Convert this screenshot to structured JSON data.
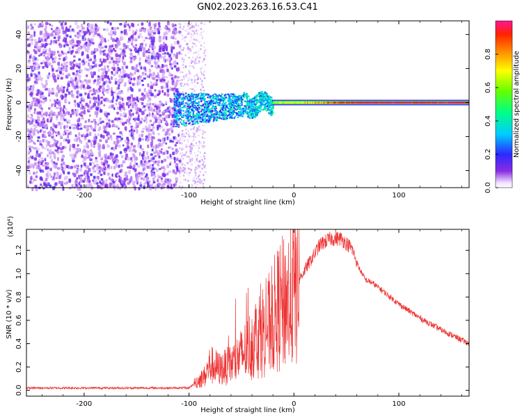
{
  "title": "GN02.2023.263.16.53.C41",
  "chart_data": [
    {
      "type": "heatmap",
      "name": "spectrogram",
      "xlabel": "Height of straight line (km)",
      "ylabel": "Frequency (Hz)",
      "xlim": [
        -255,
        167
      ],
      "ylim": [
        -50,
        48
      ],
      "xticks": [
        -200,
        -100,
        0,
        100
      ],
      "yticks": [
        -40,
        -20,
        0,
        20,
        40
      ],
      "colorbar": {
        "label": "Normalized spectral amplitude",
        "range": [
          0.0,
          1.0
        ],
        "ticks": [
          0.0,
          0.2,
          0.4,
          0.6,
          0.8
        ]
      },
      "features": {
        "noise_region_x": [
          -255,
          -110
        ],
        "signal_band_start_x": -115,
        "signal_band_center_hz": 0,
        "wide_band_x": [
          -115,
          -20
        ],
        "wide_band_halfwidth_hz": 8,
        "strong_signal_x": [
          -20,
          167
        ]
      }
    },
    {
      "type": "line",
      "name": "snr",
      "xlabel": "Height of straight line (km)",
      "ylabel": "SNR (10 * v/v)",
      "y_multiplier": "(x10⁴)",
      "xlim": [
        -255,
        167
      ],
      "ylim": [
        -0.05,
        1.38
      ],
      "xticks": [
        -200,
        -100,
        0,
        100
      ],
      "yticks": [
        0.0,
        0.2,
        0.4,
        0.6,
        0.8,
        1.0,
        1.2
      ],
      "line_color": "#ee3333",
      "envelope_points": [
        [
          -255,
          0.02
        ],
        [
          -100,
          0.02
        ],
        [
          -95,
          0.06
        ],
        [
          -85,
          0.12
        ],
        [
          -80,
          0.22
        ],
        [
          -70,
          0.18
        ],
        [
          -60,
          0.22
        ],
        [
          -50,
          0.3
        ],
        [
          -40,
          0.4
        ],
        [
          -35,
          0.48
        ],
        [
          -25,
          0.55
        ],
        [
          -15,
          0.7
        ],
        [
          -5,
          0.8
        ],
        [
          5,
          0.95
        ],
        [
          15,
          1.1
        ],
        [
          25,
          1.25
        ],
        [
          35,
          1.3
        ],
        [
          45,
          1.3
        ],
        [
          55,
          1.22
        ],
        [
          62,
          1.05
        ],
        [
          68,
          0.95
        ],
        [
          75,
          0.92
        ],
        [
          85,
          0.85
        ],
        [
          100,
          0.74
        ],
        [
          120,
          0.62
        ],
        [
          140,
          0.52
        ],
        [
          167,
          0.4
        ]
      ]
    }
  ]
}
